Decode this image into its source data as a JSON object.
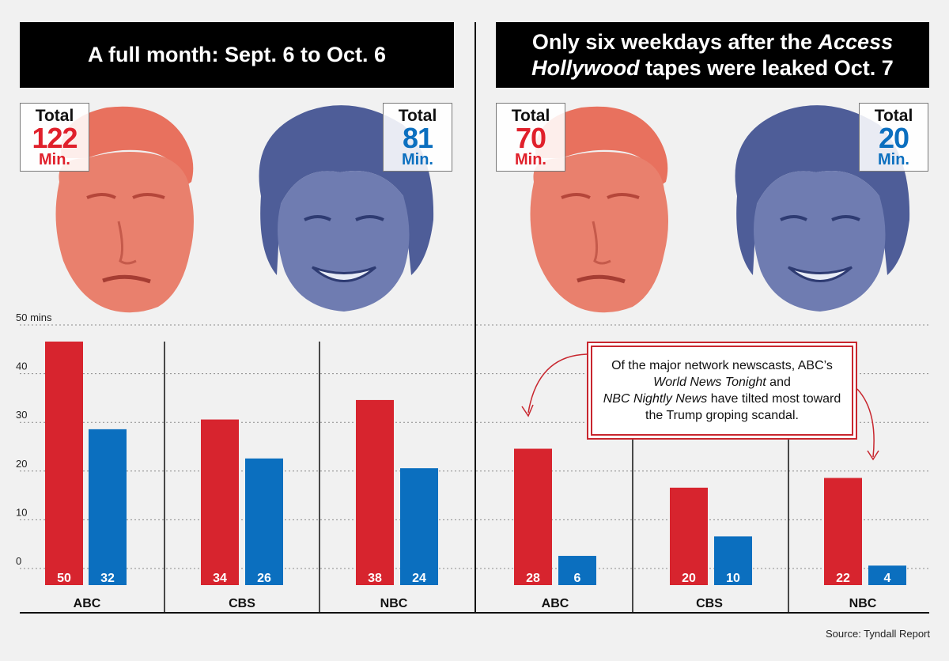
{
  "colors": {
    "trump": "#d7242e",
    "clinton": "#0b6fbf",
    "trump_face": "#e8715e",
    "clinton_face": "#4e5d98"
  },
  "left": {
    "banner": "A full month: Sept. 6 to Oct. 6",
    "trump_total": {
      "label": "Total",
      "value": "122",
      "unit": "Min."
    },
    "clinton_total": {
      "label": "Total",
      "value": "81",
      "unit": "Min."
    }
  },
  "right": {
    "banner_parts": [
      "Only six weekdays after the ",
      "Access",
      " ",
      "Hollywood",
      " tapes were leaked Oct. 7"
    ],
    "trump_total": {
      "label": "Total",
      "value": "70",
      "unit": "Min."
    },
    "clinton_total": {
      "label": "Total",
      "value": "20",
      "unit": "Min."
    }
  },
  "callout_parts": [
    "Of the major network newscasts, ABC’s ",
    "World News Tonight",
    " and ",
    "NBC Nightly News",
    " have tilted most toward the Trump groping scandal."
  ],
  "source": "Source: Tyndall Report",
  "chart_data": [
    {
      "type": "bar",
      "categories": [
        "ABC",
        "CBS",
        "NBC"
      ],
      "series": [
        {
          "values": [
            50,
            34,
            38
          ]
        },
        {
          "values": [
            32,
            26,
            24
          ]
        }
      ],
      "yticks": [
        "50 mins",
        "40",
        "30",
        "20",
        "10",
        "0"
      ],
      "ylim": [
        0,
        50
      ],
      "grid": true
    },
    {
      "type": "bar",
      "categories": [
        "ABC",
        "CBS",
        "NBC"
      ],
      "series": [
        {
          "values": [
            28,
            20,
            22
          ]
        },
        {
          "values": [
            6,
            10,
            4
          ]
        }
      ],
      "ylim": [
        0,
        50
      ],
      "grid": true
    }
  ]
}
